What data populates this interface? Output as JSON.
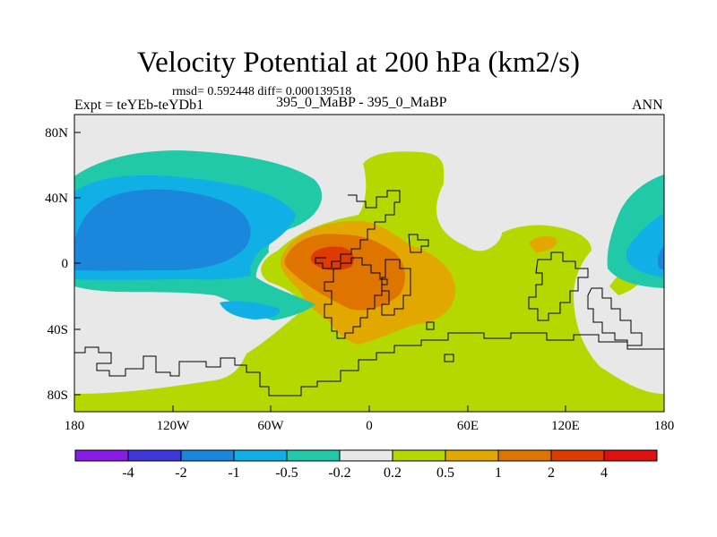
{
  "title": "Velocity Potential at 200 hPa (km2/s)",
  "stats": "rmsd= 0.592448  diff= 0.000139518",
  "expt": "Expt = teYEb-teYDb1",
  "cases": "395_0_MaBP - 395_0_MaBP",
  "season": "ANN",
  "colors": {
    "bg": "#e8e8e8",
    "c1": "#21c9a8",
    "c2": "#10b0e6",
    "c3": "#1a86dc",
    "pos1": "#b5d800",
    "pos2": "#e2a800",
    "pos3": "#df7400",
    "pos4": "#dd3b00",
    "coast": "#000000"
  },
  "chart_data": {
    "type": "heatmap",
    "title": "Velocity Potential at 200 hPa (km2/s)",
    "x_ticks": [
      "180",
      "120W",
      "60W",
      "0",
      "60E",
      "120E",
      "180"
    ],
    "y_ticks": [
      "80N",
      "40N",
      "0",
      "40S",
      "80S"
    ],
    "xlim": [
      -180,
      180
    ],
    "ylim": [
      -90,
      90
    ],
    "colorbar": {
      "labels": [
        "-4",
        "-2",
        "-1",
        "-0.5",
        "-0.2",
        "0.2",
        "0.5",
        "1",
        "2",
        "4"
      ],
      "colors": [
        "#8a1ae6",
        "#3c36dc",
        "#1a86dc",
        "#10b0e6",
        "#21c9a8",
        "#e8e8e8",
        "#b5d800",
        "#e2a800",
        "#df7400",
        "#dd3b00",
        "#e01010"
      ]
    }
  }
}
